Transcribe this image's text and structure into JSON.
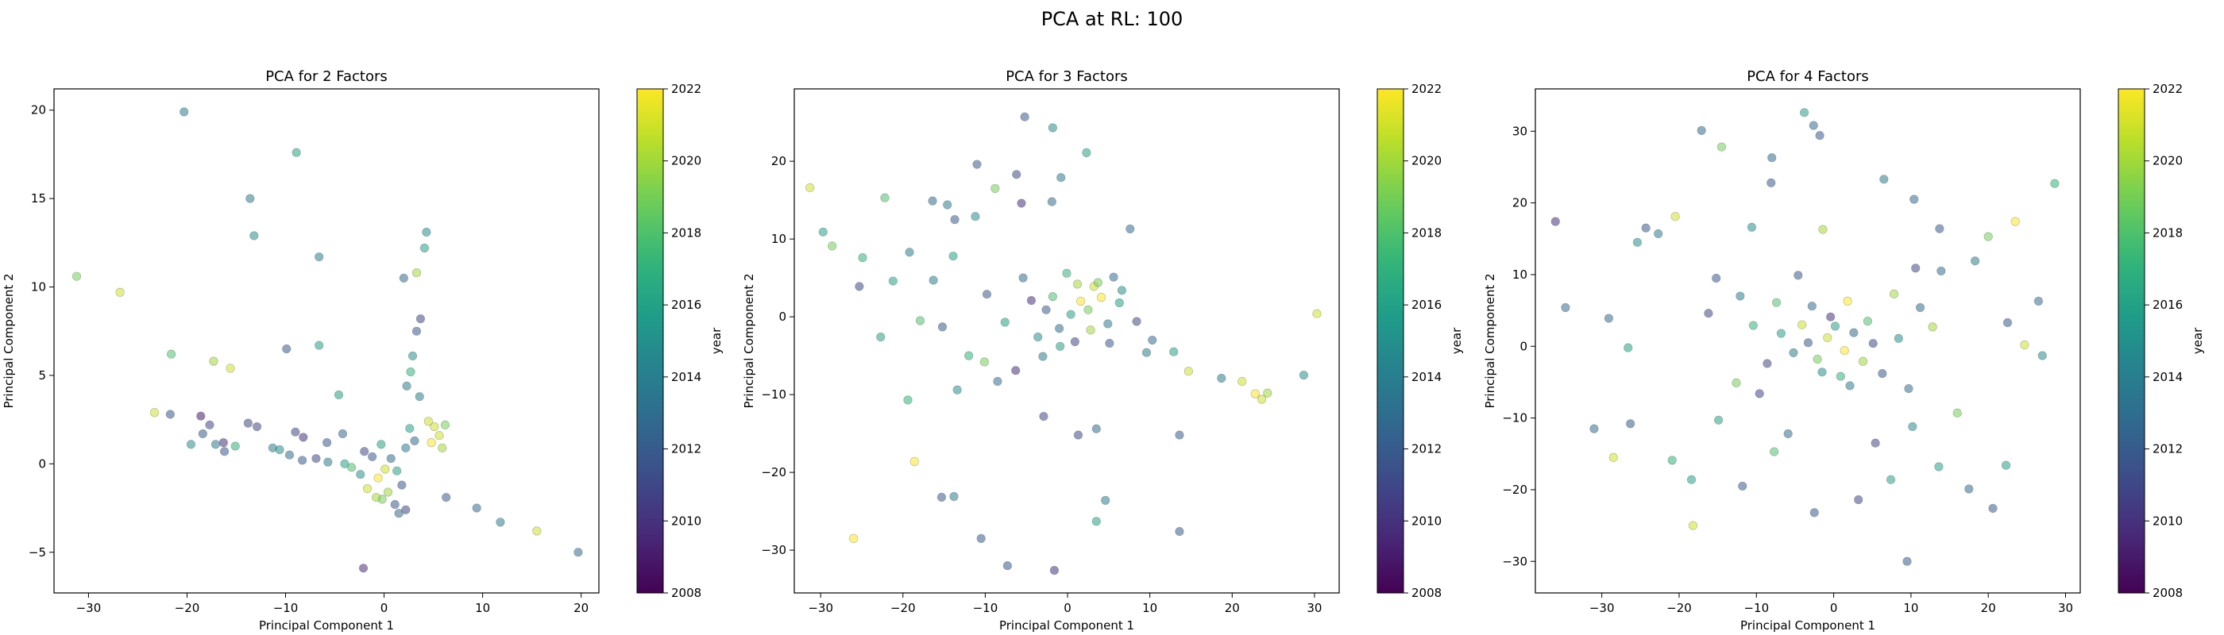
{
  "figure": {
    "suptitle": "PCA at RL: 100"
  },
  "chart_data": [
    {
      "type": "scatter",
      "title": "PCA for 2 Factors",
      "xlabel": "Principal Component 1",
      "ylabel": "Principal Component 2",
      "xlim": [
        -33.5,
        21.8
      ],
      "ylim": [
        -7.3,
        21.2
      ],
      "xticks": [
        -30,
        -20,
        -10,
        0,
        10,
        20
      ],
      "yticks": [
        -5,
        0,
        5,
        10,
        15,
        20
      ],
      "colorbar": {
        "label": "year",
        "range": [
          2008,
          2022
        ],
        "ticks": [
          2008,
          2010,
          2012,
          2014,
          2016,
          2018,
          2020,
          2022
        ]
      },
      "points": [
        [
          -20.3,
          19.9,
          2014
        ],
        [
          -8.9,
          17.6,
          2016
        ],
        [
          -13.6,
          15.0,
          2014
        ],
        [
          -13.2,
          12.9,
          2015
        ],
        [
          4.3,
          13.1,
          2015
        ],
        [
          4.1,
          12.2,
          2016
        ],
        [
          3.3,
          10.8,
          2020
        ],
        [
          2.0,
          10.5,
          2013
        ],
        [
          -6.6,
          11.7,
          2014
        ],
        [
          -31.2,
          10.6,
          2019
        ],
        [
          -26.8,
          9.7,
          2021
        ],
        [
          -6.6,
          6.7,
          2016
        ],
        [
          -9.9,
          6.5,
          2012
        ],
        [
          -21.6,
          6.2,
          2018
        ],
        [
          -17.3,
          5.8,
          2020
        ],
        [
          -15.6,
          5.4,
          2021
        ],
        [
          -4.6,
          3.9,
          2016
        ],
        [
          -23.3,
          2.9,
          2021
        ],
        [
          -21.7,
          2.8,
          2012
        ],
        [
          -18.6,
          2.7,
          2009
        ],
        [
          -17.7,
          2.2,
          2011
        ],
        [
          -18.4,
          1.7,
          2012
        ],
        [
          -13.8,
          2.3,
          2011
        ],
        [
          -12.9,
          2.1,
          2011
        ],
        [
          -16.3,
          1.2,
          2010
        ],
        [
          -19.6,
          1.1,
          2015
        ],
        [
          -17.1,
          1.1,
          2014
        ],
        [
          -15.1,
          1.0,
          2017
        ],
        [
          -16.2,
          0.7,
          2012
        ],
        [
          -11.3,
          0.9,
          2014
        ],
        [
          -10.6,
          0.8,
          2015
        ],
        [
          -9.0,
          1.8,
          2011
        ],
        [
          -8.2,
          1.5,
          2010
        ],
        [
          -9.6,
          0.5,
          2013
        ],
        [
          -8.3,
          0.2,
          2012
        ],
        [
          -6.9,
          0.3,
          2011
        ],
        [
          -5.7,
          0.1,
          2014
        ],
        [
          -4.2,
          1.7,
          2013
        ],
        [
          -5.8,
          1.2,
          2012
        ],
        [
          6.3,
          -1.9,
          2012
        ],
        [
          9.4,
          -2.5,
          2013
        ],
        [
          11.8,
          -3.3,
          2014
        ],
        [
          15.5,
          -3.8,
          2021
        ],
        [
          19.7,
          -5.0,
          2013
        ],
        [
          -2.1,
          -5.9,
          2010
        ],
        [
          1.1,
          -2.3,
          2012
        ],
        [
          2.2,
          -2.6,
          2011
        ],
        [
          1.5,
          -2.8,
          2013
        ],
        [
          5.1,
          2.1,
          2021
        ],
        [
          5.6,
          1.6,
          2021
        ],
        [
          4.8,
          1.2,
          2022
        ],
        [
          5.9,
          0.9,
          2020
        ],
        [
          4.5,
          2.4,
          2021
        ],
        [
          6.2,
          2.2,
          2019
        ],
        [
          3.6,
          3.8,
          2014
        ],
        [
          2.9,
          6.1,
          2015
        ],
        [
          3.3,
          7.5,
          2012
        ],
        [
          3.7,
          8.2,
          2011
        ],
        [
          2.7,
          5.2,
          2017
        ],
        [
          2.3,
          4.4,
          2014
        ],
        [
          -1.7,
          -1.4,
          2021
        ],
        [
          -0.6,
          -0.8,
          2022
        ],
        [
          0.4,
          -1.6,
          2020
        ],
        [
          -0.2,
          -2.0,
          2019
        ],
        [
          1.3,
          -0.4,
          2016
        ],
        [
          0.7,
          0.3,
          2013
        ],
        [
          -1.2,
          0.4,
          2012
        ],
        [
          -2.4,
          -0.6,
          2015
        ],
        [
          -3.3,
          -0.2,
          2018
        ],
        [
          -0.3,
          1.1,
          2016
        ],
        [
          2.2,
          0.9,
          2014
        ],
        [
          1.8,
          -1.2,
          2012
        ],
        [
          0.1,
          -0.3,
          2021
        ],
        [
          -0.8,
          -1.9,
          2020
        ],
        [
          2.6,
          2.0,
          2016
        ],
        [
          3.1,
          1.3,
          2013
        ],
        [
          -2.0,
          0.7,
          2011
        ],
        [
          -4.0,
          0.0,
          2016
        ]
      ]
    },
    {
      "type": "scatter",
      "title": "PCA for 3 Factors",
      "xlabel": "Principal Component 1",
      "ylabel": "Principal Component 2",
      "xlim": [
        -33.2,
        33.0
      ],
      "ylim": [
        -35.5,
        29.3
      ],
      "xticks": [
        -30,
        -20,
        -10,
        0,
        10,
        20,
        30
      ],
      "yticks": [
        -30,
        -20,
        -10,
        0,
        10,
        20
      ],
      "colorbar": {
        "label": "year",
        "range": [
          2008,
          2022
        ],
        "ticks": [
          2008,
          2010,
          2012,
          2014,
          2016,
          2018,
          2020,
          2022
        ]
      },
      "points": [
        [
          -5.2,
          25.7,
          2012
        ],
        [
          -1.8,
          24.3,
          2015
        ],
        [
          -11.0,
          19.6,
          2012
        ],
        [
          2.3,
          21.1,
          2016
        ],
        [
          -6.2,
          18.3,
          2011
        ],
        [
          -0.8,
          17.9,
          2014
        ],
        [
          -31.3,
          16.6,
          2021
        ],
        [
          -8.8,
          16.5,
          2019
        ],
        [
          -1.9,
          14.8,
          2013
        ],
        [
          -5.6,
          14.6,
          2010
        ],
        [
          -16.4,
          14.9,
          2013
        ],
        [
          -14.6,
          14.4,
          2014
        ],
        [
          -22.2,
          15.3,
          2018
        ],
        [
          -13.7,
          12.5,
          2012
        ],
        [
          -11.2,
          12.9,
          2015
        ],
        [
          -29.7,
          10.9,
          2016
        ],
        [
          -28.6,
          9.1,
          2019
        ],
        [
          -24.9,
          7.6,
          2017
        ],
        [
          7.6,
          11.3,
          2013
        ],
        [
          -19.2,
          8.3,
          2014
        ],
        [
          -13.9,
          7.8,
          2016
        ],
        [
          -25.3,
          3.9,
          2011
        ],
        [
          -21.2,
          4.6,
          2016
        ],
        [
          -16.3,
          4.7,
          2014
        ],
        [
          -22.7,
          -2.6,
          2016
        ],
        [
          -17.9,
          -0.5,
          2018
        ],
        [
          -15.2,
          -1.3,
          2012
        ],
        [
          -19.4,
          -10.7,
          2017
        ],
        [
          -13.4,
          -9.4,
          2015
        ],
        [
          -8.5,
          -8.3,
          2013
        ],
        [
          -18.6,
          -18.6,
          2022
        ],
        [
          -15.3,
          -23.2,
          2012
        ],
        [
          -13.8,
          -23.1,
          2014
        ],
        [
          -26.0,
          -28.5,
          2022
        ],
        [
          -10.5,
          -28.5,
          2012
        ],
        [
          -7.3,
          -32.0,
          2012
        ],
        [
          -1.6,
          -32.6,
          2010
        ],
        [
          4.6,
          -23.6,
          2014
        ],
        [
          3.5,
          -26.3,
          2016
        ],
        [
          13.6,
          -27.6,
          2012
        ],
        [
          13.6,
          -15.2,
          2012
        ],
        [
          14.7,
          -7.0,
          2021
        ],
        [
          21.2,
          -8.3,
          2021
        ],
        [
          22.8,
          -9.9,
          2022
        ],
        [
          23.6,
          -10.6,
          2021
        ],
        [
          24.3,
          -9.8,
          2020
        ],
        [
          28.7,
          -7.5,
          2015
        ],
        [
          30.3,
          0.4,
          2021
        ],
        [
          18.7,
          -7.9,
          2014
        ],
        [
          12.9,
          -4.5,
          2016
        ],
        [
          10.3,
          -3.0,
          2013
        ],
        [
          -10.1,
          -5.8,
          2019
        ],
        [
          -6.3,
          -6.9,
          2010
        ],
        [
          -2.9,
          -12.8,
          2011
        ],
        [
          1.3,
          -15.2,
          2011
        ],
        [
          3.5,
          -14.4,
          2013
        ],
        [
          -12.0,
          -5.0,
          2017
        ],
        [
          5.6,
          5.1,
          2013
        ],
        [
          3.2,
          3.9,
          2021
        ],
        [
          1.2,
          4.2,
          2020
        ],
        [
          4.1,
          2.5,
          2022
        ],
        [
          2.5,
          0.9,
          2019
        ],
        [
          0.4,
          0.3,
          2016
        ],
        [
          -1.0,
          -1.5,
          2013
        ],
        [
          -2.6,
          0.9,
          2012
        ],
        [
          -3.6,
          -2.6,
          2015
        ],
        [
          -1.8,
          2.6,
          2018
        ],
        [
          0.9,
          -3.2,
          2011
        ],
        [
          4.9,
          -0.9,
          2014
        ],
        [
          6.3,
          1.8,
          2016
        ],
        [
          -0.1,
          5.6,
          2017
        ],
        [
          2.8,
          -1.7,
          2020
        ],
        [
          -4.4,
          2.1,
          2010
        ],
        [
          1.6,
          2.0,
          2022
        ],
        [
          3.7,
          4.4,
          2019
        ],
        [
          -0.9,
          -3.8,
          2016
        ],
        [
          5.1,
          -3.4,
          2012
        ],
        [
          -3.0,
          -5.1,
          2014
        ],
        [
          6.6,
          3.4,
          2015
        ],
        [
          -5.4,
          5.0,
          2013
        ],
        [
          8.4,
          -0.6,
          2011
        ],
        [
          -7.6,
          -0.7,
          2016
        ],
        [
          9.6,
          -4.6,
          2014
        ],
        [
          -9.8,
          2.9,
          2012
        ]
      ]
    },
    {
      "type": "scatter",
      "title": "PCA for 4 Factors",
      "xlabel": "Principal Component 1",
      "ylabel": "Principal Component 2",
      "xlim": [
        -38.6,
        31.9
      ],
      "ylim": [
        -34.4,
        35.9
      ],
      "xticks": [
        -30,
        -20,
        -10,
        0,
        10,
        20,
        30
      ],
      "yticks": [
        -30,
        -20,
        -10,
        0,
        10,
        20,
        30
      ],
      "colorbar": {
        "label": "year",
        "range": [
          2008,
          2022
        ],
        "ticks": [
          2008,
          2010,
          2012,
          2014,
          2016,
          2018,
          2020,
          2022
        ]
      },
      "points": [
        [
          -3.8,
          32.6,
          2016
        ],
        [
          -2.6,
          30.8,
          2013
        ],
        [
          -1.8,
          29.4,
          2012
        ],
        [
          -17.1,
          30.1,
          2013
        ],
        [
          -14.5,
          27.8,
          2019
        ],
        [
          -8.0,
          26.3,
          2013
        ],
        [
          -8.1,
          22.8,
          2012
        ],
        [
          6.5,
          23.3,
          2014
        ],
        [
          10.4,
          20.5,
          2013
        ],
        [
          -36.0,
          17.4,
          2010
        ],
        [
          -34.7,
          5.4,
          2013
        ],
        [
          -24.3,
          16.5,
          2012
        ],
        [
          -22.7,
          15.7,
          2014
        ],
        [
          -25.4,
          14.5,
          2015
        ],
        [
          -20.5,
          18.1,
          2021
        ],
        [
          -10.6,
          16.6,
          2015
        ],
        [
          -1.4,
          16.3,
          2020
        ],
        [
          13.7,
          16.4,
          2012
        ],
        [
          23.5,
          17.4,
          2022
        ],
        [
          28.6,
          22.7,
          2017
        ],
        [
          20.0,
          15.3,
          2019
        ],
        [
          18.3,
          11.9,
          2014
        ],
        [
          13.9,
          10.5,
          2013
        ],
        [
          10.6,
          10.9,
          2011
        ],
        [
          26.5,
          6.3,
          2013
        ],
        [
          22.5,
          3.3,
          2012
        ],
        [
          24.7,
          0.2,
          2021
        ],
        [
          27.0,
          -1.3,
          2015
        ],
        [
          -29.1,
          3.9,
          2013
        ],
        [
          -26.6,
          -0.2,
          2016
        ],
        [
          -31.0,
          -11.5,
          2013
        ],
        [
          -28.5,
          -15.5,
          2021
        ],
        [
          -26.3,
          -10.8,
          2012
        ],
        [
          -20.9,
          -15.9,
          2017
        ],
        [
          -18.4,
          -18.6,
          2016
        ],
        [
          -18.2,
          -25.0,
          2021
        ],
        [
          -11.8,
          -19.5,
          2012
        ],
        [
          -7.7,
          -14.7,
          2018
        ],
        [
          -2.5,
          -23.2,
          2012
        ],
        [
          3.2,
          -21.4,
          2011
        ],
        [
          7.4,
          -18.6,
          2016
        ],
        [
          13.6,
          -16.8,
          2016
        ],
        [
          17.5,
          -19.9,
          2013
        ],
        [
          20.6,
          -22.6,
          2012
        ],
        [
          22.3,
          -16.6,
          2016
        ],
        [
          9.5,
          -30.0,
          2012
        ],
        [
          -14.9,
          -10.3,
          2016
        ],
        [
          -9.6,
          -6.6,
          2011
        ],
        [
          -5.9,
          -12.2,
          2013
        ],
        [
          5.4,
          -13.5,
          2011
        ],
        [
          10.2,
          -11.2,
          2015
        ],
        [
          16.0,
          -9.3,
          2019
        ],
        [
          -16.2,
          4.6,
          2011
        ],
        [
          -12.1,
          7.0,
          2014
        ],
        [
          -7.4,
          6.1,
          2018
        ],
        [
          -4.6,
          9.9,
          2012
        ],
        [
          7.8,
          7.3,
          2020
        ],
        [
          11.2,
          5.4,
          2013
        ],
        [
          -0.8,
          1.2,
          2021
        ],
        [
          1.4,
          -0.6,
          2022
        ],
        [
          -2.1,
          -1.8,
          2019
        ],
        [
          0.2,
          2.8,
          2016
        ],
        [
          2.6,
          1.9,
          2013
        ],
        [
          -3.3,
          0.5,
          2012
        ],
        [
          3.8,
          -2.1,
          2020
        ],
        [
          -1.5,
          -3.6,
          2015
        ],
        [
          5.1,
          0.4,
          2011
        ],
        [
          -5.2,
          -0.9,
          2014
        ],
        [
          0.9,
          -4.2,
          2017
        ],
        [
          -0.4,
          4.1,
          2010
        ],
        [
          4.4,
          3.5,
          2018
        ],
        [
          -4.1,
          3.0,
          2021
        ],
        [
          6.3,
          -3.8,
          2012
        ],
        [
          -6.8,
          1.8,
          2016
        ],
        [
          2.1,
          -5.5,
          2014
        ],
        [
          -2.8,
          5.6,
          2013
        ],
        [
          8.4,
          1.1,
          2015
        ],
        [
          -8.6,
          -2.4,
          2011
        ],
        [
          1.8,
          6.3,
          2022
        ],
        [
          -10.4,
          2.9,
          2017
        ],
        [
          9.7,
          -5.9,
          2013
        ],
        [
          -12.6,
          -5.1,
          2019
        ],
        [
          12.8,
          2.7,
          2020
        ],
        [
          -15.2,
          9.5,
          2012
        ]
      ]
    }
  ]
}
